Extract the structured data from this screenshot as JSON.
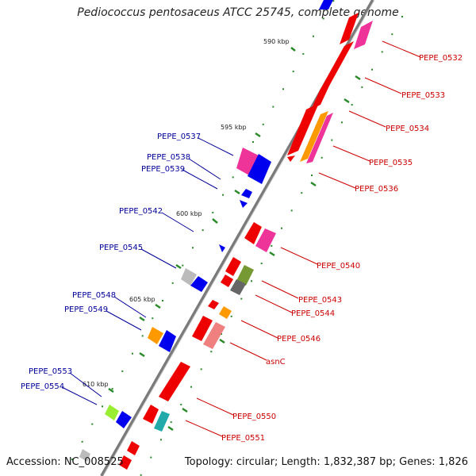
{
  "title": "Pediococcus pentosaceus ATCC 25745, complete genome",
  "footer": {
    "accession": "Accession: NC_008525",
    "topology": "Topology: circular; Length: 1,832,387 bp; Genes: 1,826"
  },
  "ticks": [
    {
      "label": "590 kbp",
      "pos_kbp": 590
    },
    {
      "label": "595 kbp",
      "pos_kbp": 595
    },
    {
      "label": "600 kbp",
      "pos_kbp": 600
    },
    {
      "label": "605 kbp",
      "pos_kbp": 605
    },
    {
      "label": "610 kbp",
      "pos_kbp": 610
    }
  ],
  "gene_labels_forward": [
    "PEPE_0532",
    "PEPE_0533",
    "PEPE_0534",
    "PEPE_0535",
    "PEPE_0536",
    "PEPE_0540",
    "PEPE_0543",
    "PEPE_0544",
    "PEPE_0546",
    "asnC",
    "PEPE_0550",
    "PEPE_0551"
  ],
  "gene_labels_reverse": [
    "PEPE_0537",
    "PEPE_0538",
    "PEPE_0539",
    "PEPE_0542",
    "PEPE_0545",
    "PEPE_0548",
    "PEPE_0549",
    "PEPE_0553",
    "PEPE_0554"
  ],
  "colors": {
    "forward_label": "#cc0000",
    "reverse_label": "#000099",
    "backbone": "#888888",
    "tick": "#2a8a2a",
    "cds_red": "#ee0000",
    "pink": "#ee3399",
    "orange": "#ff9900",
    "blue": "#0000ee",
    "grey": "#bbbbbb",
    "olive": "#779933",
    "salmon": "#f08080",
    "lime": "#99ee33",
    "teal": "#22aaaa"
  }
}
